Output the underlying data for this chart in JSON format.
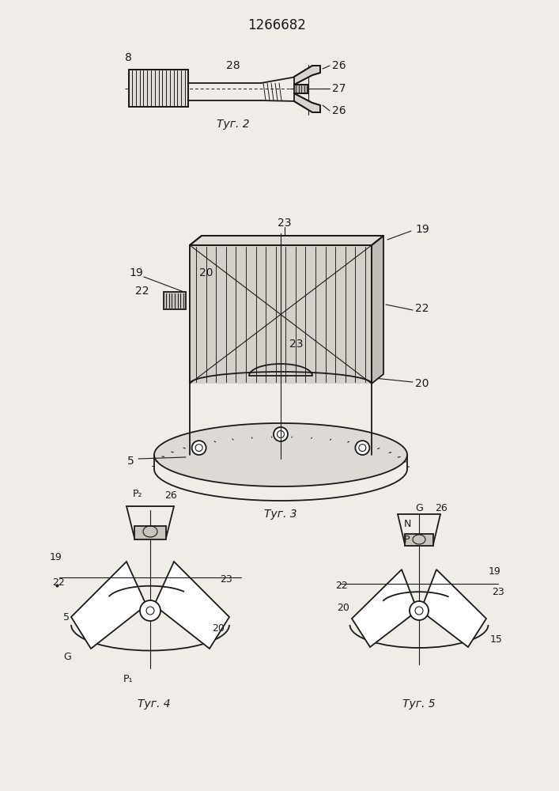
{
  "bg_color": "#f0ede8",
  "line_color": "#1a1a1a",
  "title": "1266682",
  "fig2_cap": "Τуг. 2",
  "fig3_cap": "Τуг. 3",
  "fig4_cap": "Τуг. 4",
  "fig5_cap": "Τуг. 5"
}
